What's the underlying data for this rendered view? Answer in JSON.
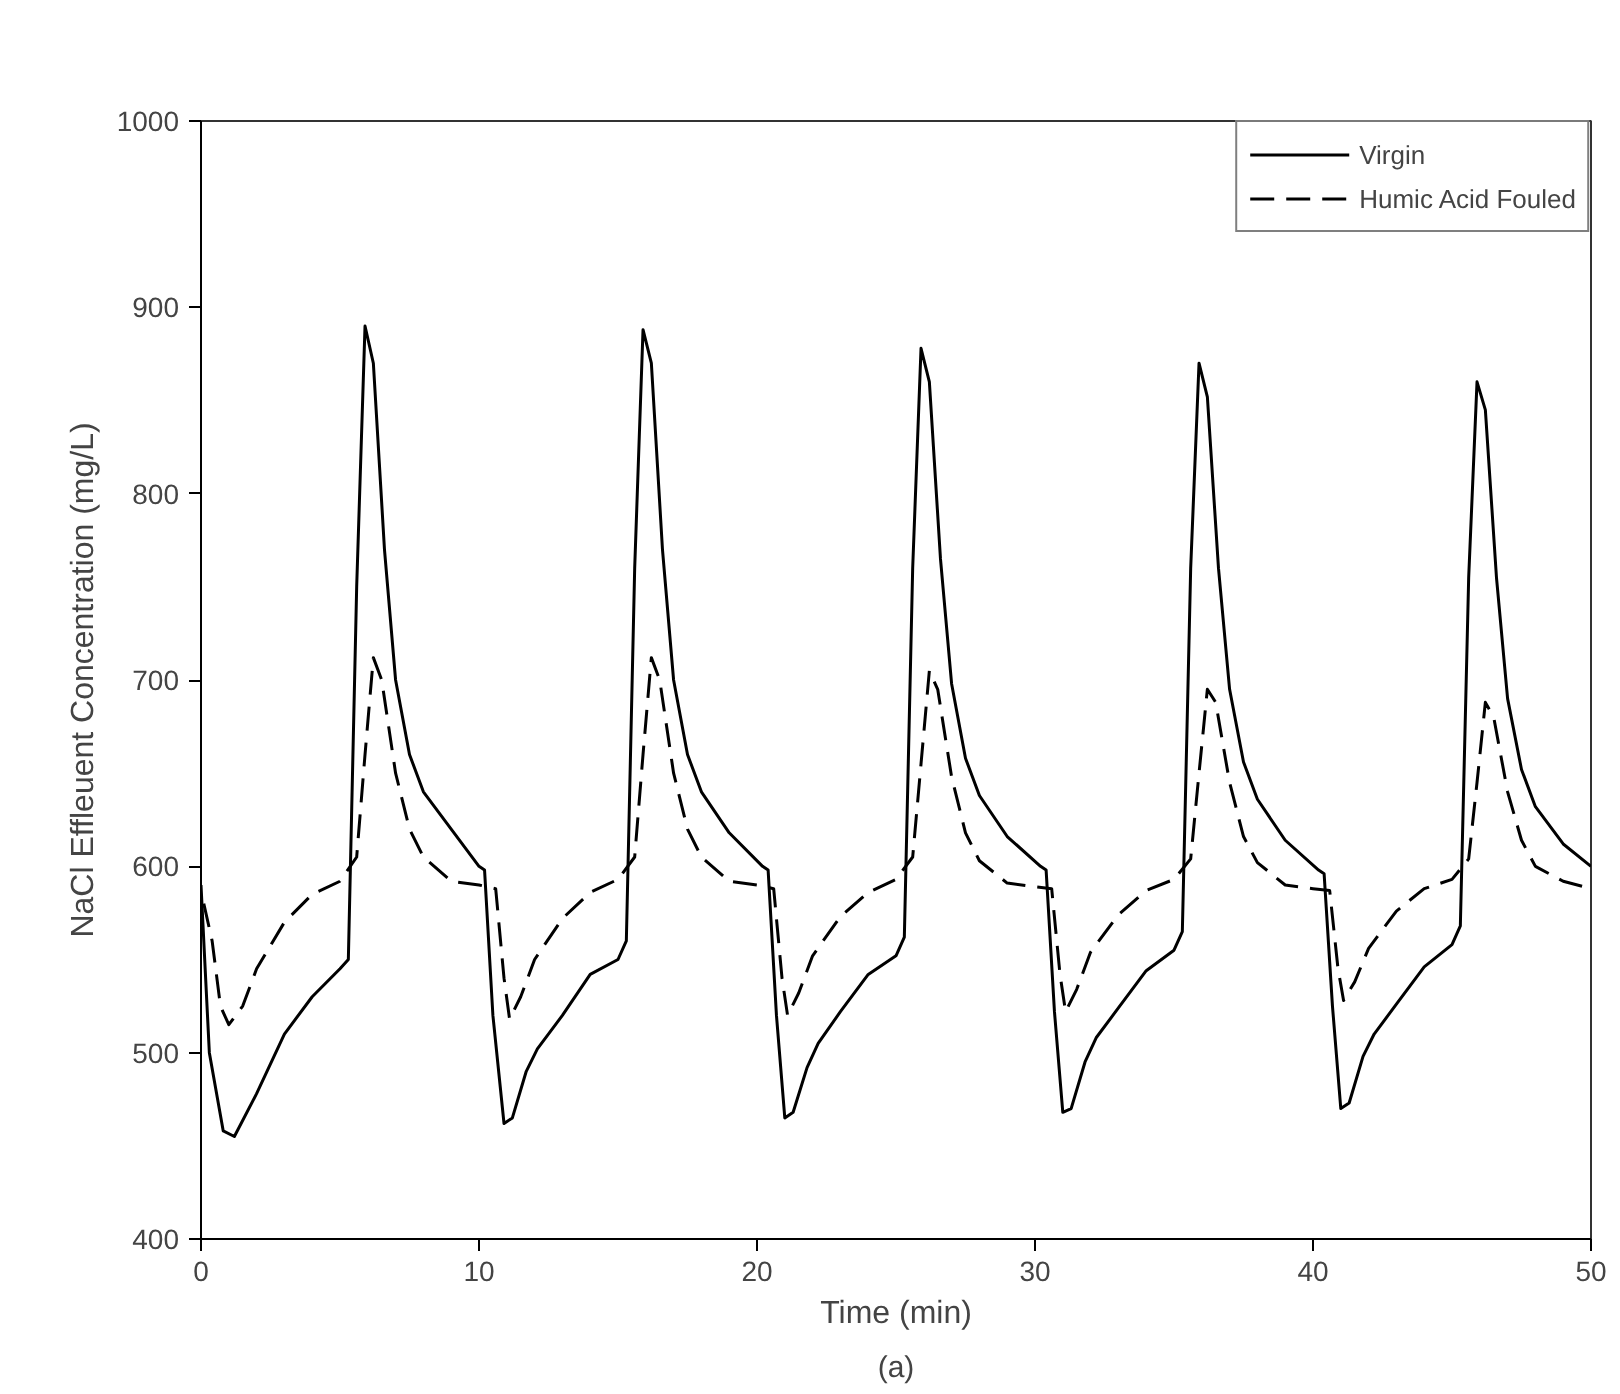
{
  "chart_data": {
    "type": "line",
    "xlabel": "Time (min)",
    "ylabel": "NaCl Effleuent Concentration (mg/L)",
    "annotations": [
      "(a)"
    ],
    "xlim": [
      0,
      50
    ],
    "ylim": [
      400,
      1000
    ],
    "xticks": [
      0,
      10,
      20,
      30,
      40,
      50
    ],
    "yticks": [
      400,
      500,
      600,
      700,
      800,
      900,
      1000
    ],
    "grid": false,
    "legend": "top right",
    "marker": "none",
    "series": [
      {
        "name": "Virgin",
        "color": "#000000",
        "line_style": "solid",
        "x": [
          0,
          0.3,
          0.8,
          1.2,
          2,
          3,
          4,
          5,
          5.3,
          5.6,
          5.9,
          6.2,
          6.6,
          7,
          7.5,
          8,
          9,
          10,
          10.2,
          10.5,
          10.9,
          11.2,
          11.7,
          12.1,
          13,
          14,
          15,
          15.3,
          15.6,
          15.9,
          16.2,
          16.6,
          17,
          17.5,
          18,
          19,
          20.2,
          20.4,
          20.7,
          21,
          21.3,
          21.8,
          22.2,
          23,
          24,
          25,
          25.3,
          25.6,
          25.9,
          26.2,
          26.6,
          27,
          27.5,
          28,
          29,
          30.2,
          30.4,
          30.7,
          31,
          31.3,
          31.8,
          32.2,
          33,
          34,
          35,
          35.3,
          35.6,
          35.9,
          36.2,
          36.6,
          37,
          37.5,
          38,
          39,
          40.2,
          40.4,
          40.7,
          41,
          41.3,
          41.8,
          42.2,
          43,
          44,
          45,
          45.3,
          45.6,
          45.9,
          46.2,
          46.6,
          47,
          47.5,
          48,
          49,
          50
        ],
        "values": [
          590,
          500,
          458,
          455,
          478,
          510,
          530,
          545,
          550,
          750,
          890,
          870,
          770,
          700,
          660,
          640,
          620,
          600,
          598,
          520,
          462,
          465,
          490,
          502,
          520,
          542,
          550,
          560,
          760,
          888,
          870,
          770,
          700,
          660,
          640,
          618,
          600,
          598,
          520,
          465,
          468,
          492,
          505,
          522,
          542,
          552,
          562,
          760,
          878,
          860,
          765,
          698,
          658,
          638,
          616,
          600,
          598,
          522,
          468,
          470,
          495,
          508,
          524,
          544,
          555,
          565,
          760,
          870,
          852,
          760,
          695,
          656,
          636,
          614,
          598,
          596,
          525,
          470,
          473,
          498,
          510,
          526,
          546,
          558,
          568,
          755,
          860,
          845,
          755,
          690,
          652,
          632,
          612,
          600
        ]
      },
      {
        "name": "Humic Acid Fouled",
        "color": "#000000",
        "line_style": "dashed",
        "x": [
          0.1,
          0.4,
          0.7,
          1,
          1.5,
          2,
          3,
          4,
          5,
          5.6,
          5.9,
          6.2,
          6.5,
          7,
          7.5,
          8,
          9,
          10,
          10.6,
          10.9,
          11.1,
          11.5,
          12,
          13,
          14,
          15,
          15.6,
          15.9,
          16.2,
          16.5,
          17,
          17.5,
          18,
          19,
          20,
          20.6,
          20.9,
          21.1,
          21.5,
          22,
          23,
          24,
          25,
          25.6,
          25.9,
          26.2,
          26.5,
          27,
          27.5,
          28,
          29,
          30,
          30.6,
          30.9,
          31.1,
          31.5,
          32,
          33,
          34,
          35,
          35.6,
          35.9,
          36.2,
          36.5,
          37,
          37.5,
          38,
          39,
          40,
          40.6,
          40.9,
          41.1,
          41.5,
          42,
          43,
          44,
          45,
          45.6,
          45.9,
          46.2,
          46.5,
          47,
          47.5,
          48,
          49,
          50
        ],
        "values": [
          580,
          560,
          525,
          515,
          525,
          545,
          570,
          585,
          592,
          605,
          660,
          712,
          700,
          650,
          620,
          605,
          592,
          590,
          588,
          540,
          518,
          530,
          550,
          572,
          586,
          593,
          605,
          660,
          712,
          700,
          650,
          620,
          605,
          592,
          590,
          588,
          540,
          520,
          532,
          552,
          573,
          586,
          593,
          605,
          655,
          705,
          695,
          648,
          618,
          603,
          591,
          589,
          588,
          542,
          522,
          534,
          554,
          574,
          587,
          593,
          604,
          650,
          695,
          688,
          645,
          616,
          602,
          590,
          588,
          587,
          545,
          528,
          538,
          556,
          576,
          588,
          593,
          604,
          645,
          688,
          680,
          640,
          614,
          600,
          592,
          588
        ]
      }
    ]
  }
}
